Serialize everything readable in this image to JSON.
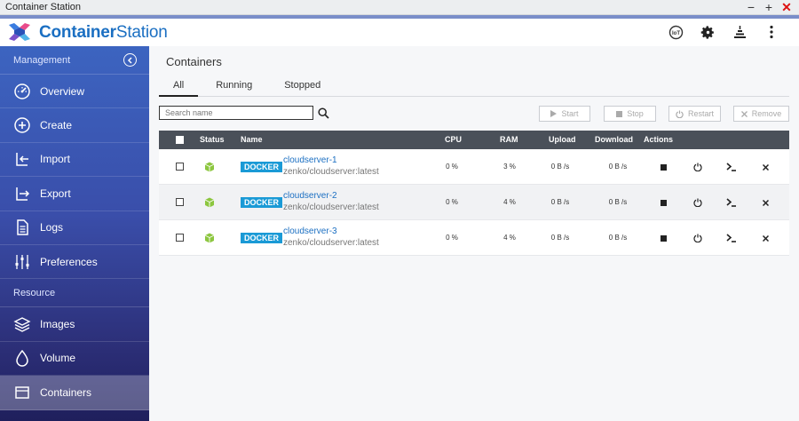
{
  "window": {
    "title": "Container Station",
    "minimize": "−",
    "maximize": "+",
    "close": "✕"
  },
  "header": {
    "brand_bold": "Container",
    "brand_rest": "Station",
    "brand_color": "#1b6fc2",
    "icons": [
      "iot-icon",
      "gear-icon",
      "stack-icon",
      "more-vertical-icon"
    ],
    "iot_label": "IoT"
  },
  "sidebar": {
    "management_label": "Management",
    "resource_label": "Resource",
    "management_items": [
      {
        "label": "Overview",
        "icon": "gauge-icon"
      },
      {
        "label": "Create",
        "icon": "plus-circle-icon"
      },
      {
        "label": "Import",
        "icon": "import-icon"
      },
      {
        "label": "Export",
        "icon": "export-icon"
      },
      {
        "label": "Logs",
        "icon": "document-icon"
      },
      {
        "label": "Preferences",
        "icon": "sliders-icon"
      }
    ],
    "resource_items": [
      {
        "label": "Images",
        "icon": "layers-icon"
      },
      {
        "label": "Volume",
        "icon": "drop-icon"
      },
      {
        "label": "Containers",
        "icon": "container-icon",
        "active": true
      }
    ]
  },
  "main": {
    "title": "Containers",
    "tabs": [
      {
        "label": "All",
        "active": true
      },
      {
        "label": "Running"
      },
      {
        "label": "Stopped"
      }
    ],
    "search": {
      "placeholder": "Search name",
      "value": ""
    },
    "actions": {
      "start": "Start",
      "stop": "Stop",
      "restart": "Restart",
      "remove": "Remove"
    }
  },
  "table": {
    "columns": {
      "status": "Status",
      "name": "Name",
      "cpu": "CPU",
      "ram": "RAM",
      "upload": "Upload",
      "download": "Download",
      "actions": "Actions"
    },
    "rows": [
      {
        "badge": "DOCKER",
        "name": "cloudserver-1",
        "image": "zenko/cloudserver:latest",
        "cpu": "0 %",
        "ram": "3 %",
        "upload": "0 B /s",
        "download": "0 B /s"
      },
      {
        "badge": "DOCKER",
        "name": "cloudserver-2",
        "image": "zenko/cloudserver:latest",
        "cpu": "0 %",
        "ram": "4 %",
        "upload": "0 B /s",
        "download": "0 B /s"
      },
      {
        "badge": "DOCKER",
        "name": "cloudserver-3",
        "image": "zenko/cloudserver:latest",
        "cpu": "0 %",
        "ram": "4 %",
        "upload": "0 B /s",
        "download": "0 B /s"
      }
    ]
  },
  "colors": {
    "status_running": "#8cc63f",
    "docker_badge": "#1a9ad6",
    "header_row": "#4a5059"
  }
}
